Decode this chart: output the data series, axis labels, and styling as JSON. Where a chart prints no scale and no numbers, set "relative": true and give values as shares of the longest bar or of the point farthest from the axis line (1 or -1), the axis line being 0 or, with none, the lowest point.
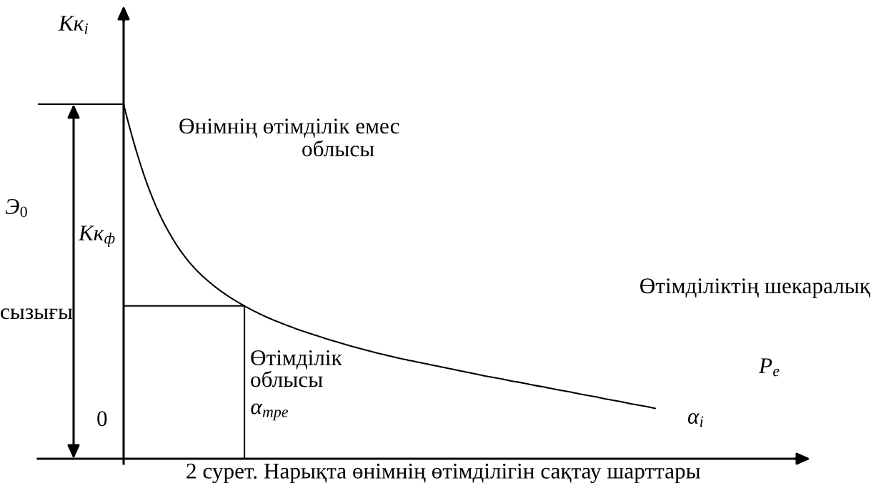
{
  "chart_data": {
    "type": "line",
    "relative": true,
    "xlabel": "α$_{i}$",
    "ylabel": "Кк$_{i}$",
    "categories": [
      null,
      null,
      null,
      null,
      null,
      null,
      null,
      null,
      null,
      null,
      null,
      null,
      null,
      null,
      null,
      null,
      null,
      null,
      null,
      null,
      null,
      null,
      null,
      null,
      null,
      null,
      null,
      null,
      null,
      null,
      null,
      null,
      null,
      null,
      null,
      null,
      null,
      null,
      null,
      null,
      null,
      null,
      null,
      null,
      null
    ],
    "series": [
      {
        "color": "#000000",
        "values": [
          1.0,
          0.874,
          0.77,
          0.688,
          0.624,
          0.573,
          0.533,
          0.501,
          0.474,
          0.451,
          0.431,
          0.413,
          0.397,
          0.383,
          0.37,
          0.358,
          0.347,
          0.336,
          0.326,
          0.316,
          0.307,
          0.298,
          0.29,
          0.282,
          0.275,
          0.268,
          0.261,
          0.254,
          0.247,
          0.24,
          0.233,
          0.227,
          0.22,
          0.214,
          0.207,
          0.201,
          0.194,
          0.188,
          0.181,
          0.175,
          0.168,
          0.162,
          0.155,
          0.149,
          0.142
        ]
      }
    ],
    "ref_lines": [
      {
        "axis": "y",
        "value": 0.431,
        "label": "α$_{тре}$",
        "color": "#000000"
      }
    ],
    "annotations": [
      "Өнімнің өтімділік емес",
      "облысы",
      "Э$_{0}$",
      "Кк$_{ф}$",
      "Өтімділіктің шекаралық",
      "сызығы",
      "Өтімділік\nоблысы",
      "P$_{e}$",
      "0",
      "2 сурет. Нарықта өнімнің өтімділігін сақтау шарттары"
    ]
  }
}
